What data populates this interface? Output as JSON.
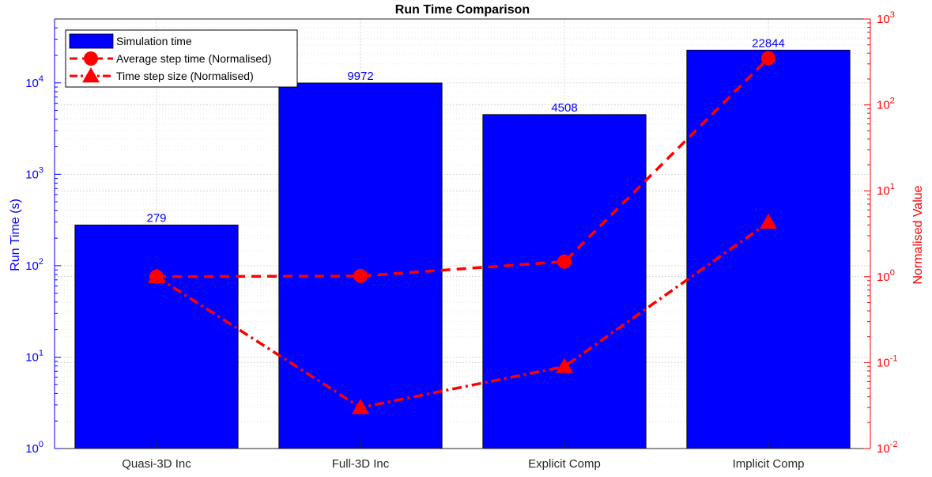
{
  "chart_data": {
    "type": "bar",
    "title": "Run Time Comparison",
    "categories": [
      "Quasi-3D Inc",
      "Full-3D Inc",
      "Explicit Comp",
      "Implicit Comp"
    ],
    "y_scale": "log",
    "ylabel_left": "Run Time (s)",
    "ylim_left": [
      1,
      50000
    ],
    "yticks_left": [
      {
        "base": "10",
        "exp": "0"
      },
      {
        "base": "10",
        "exp": "1"
      },
      {
        "base": "10",
        "exp": "2"
      },
      {
        "base": "10",
        "exp": "3"
      },
      {
        "base": "10",
        "exp": "4"
      }
    ],
    "ylabel_right": "Normalised Value",
    "ylim_right": [
      0.01,
      1000
    ],
    "yticks_right": [
      {
        "base": "10",
        "exp": "-2"
      },
      {
        "base": "10",
        "exp": "-1"
      },
      {
        "base": "10",
        "exp": "0"
      },
      {
        "base": "10",
        "exp": "1"
      },
      {
        "base": "10",
        "exp": "2"
      },
      {
        "base": "10",
        "exp": "3"
      }
    ],
    "grid": true,
    "legend_position": "top-left",
    "series": [
      {
        "name": "Simulation time",
        "type": "bar",
        "axis": "left",
        "color": "#0000ff",
        "values": [
          279,
          9972,
          4508,
          22844
        ],
        "labels": [
          "279",
          "9972",
          "4508",
          "22844"
        ]
      },
      {
        "name": "Average step time (Normalised)",
        "type": "line",
        "axis": "right",
        "color": "#ff0000",
        "line_style": "dashed",
        "marker": "circle",
        "values": [
          1.0,
          1.02,
          1.5,
          350
        ]
      },
      {
        "name": "Time step size (Normalised)",
        "type": "line",
        "axis": "right",
        "color": "#ff0000",
        "line_style": "dash-dot",
        "marker": "triangle",
        "values": [
          1.0,
          0.03,
          0.09,
          4.3
        ]
      }
    ]
  }
}
